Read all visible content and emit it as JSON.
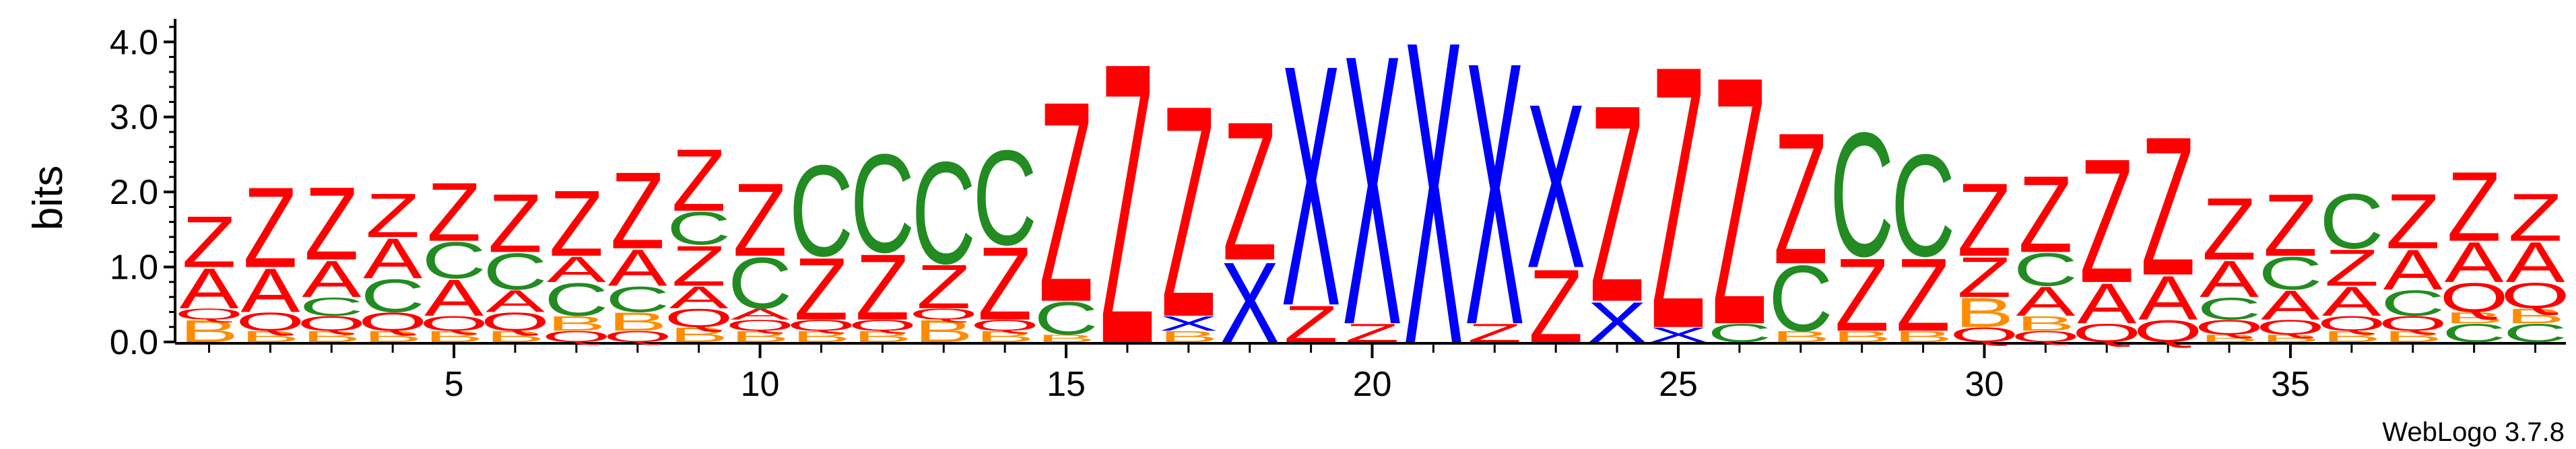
{
  "chart_data": {
    "type": "sequence-logo",
    "title": "",
    "xlabel": "",
    "ylabel": "bits",
    "ylim": [
      0,
      4.2
    ],
    "y_ticks": [
      "0.0",
      "1.0",
      "2.0",
      "3.0",
      "4.0"
    ],
    "x_ticks": [
      "5",
      "10",
      "15",
      "20",
      "25",
      "30",
      "35"
    ],
    "credit": "WebLogo 3.7.8",
    "colors": {
      "Z": "#ff0000",
      "A": "#ff0000",
      "Q": "#ff0000",
      "C": "#228b22",
      "X": "#0000ff",
      "B": "#ff8c00"
    },
    "positions": [
      {
        "pos": 1,
        "stack": [
          [
            "B",
            0.3
          ],
          [
            "Q",
            0.15
          ],
          [
            "A",
            0.55
          ],
          [
            "Z",
            0.7
          ]
        ]
      },
      {
        "pos": 2,
        "stack": [
          [
            "B",
            0.15
          ],
          [
            "Q",
            0.25
          ],
          [
            "A",
            0.6
          ],
          [
            "Z",
            1.1
          ]
        ]
      },
      {
        "pos": 3,
        "stack": [
          [
            "B",
            0.15
          ],
          [
            "Q",
            0.2
          ],
          [
            "C",
            0.25
          ],
          [
            "A",
            0.5
          ],
          [
            "Z",
            1.0
          ]
        ]
      },
      {
        "pos": 4,
        "stack": [
          [
            "B",
            0.15
          ],
          [
            "Q",
            0.25
          ],
          [
            "C",
            0.45
          ],
          [
            "A",
            0.55
          ],
          [
            "Z",
            0.6
          ]
        ]
      },
      {
        "pos": 5,
        "stack": [
          [
            "B",
            0.15
          ],
          [
            "Q",
            0.2
          ],
          [
            "A",
            0.5
          ],
          [
            "C",
            0.5
          ],
          [
            "Z",
            0.8
          ]
        ]
      },
      {
        "pos": 6,
        "stack": [
          [
            "B",
            0.15
          ],
          [
            "Q",
            0.25
          ],
          [
            "A",
            0.3
          ],
          [
            "C",
            0.5
          ],
          [
            "Z",
            0.8
          ]
        ]
      },
      {
        "pos": 7,
        "stack": [
          [
            "Q",
            0.15
          ],
          [
            "B",
            0.2
          ],
          [
            "C",
            0.45
          ],
          [
            "A",
            0.35
          ],
          [
            "Z",
            0.9
          ]
        ]
      },
      {
        "pos": 8,
        "stack": [
          [
            "Q",
            0.15
          ],
          [
            "B",
            0.25
          ],
          [
            "C",
            0.35
          ],
          [
            "A",
            0.5
          ],
          [
            "Z",
            1.05
          ]
        ]
      },
      {
        "pos": 9,
        "stack": [
          [
            "B",
            0.2
          ],
          [
            "Q",
            0.25
          ],
          [
            "A",
            0.3
          ],
          [
            "Z",
            0.55
          ],
          [
            "C",
            0.45
          ],
          [
            "Z",
            0.85
          ]
        ]
      },
      {
        "pos": 10,
        "stack": [
          [
            "B",
            0.15
          ],
          [
            "Q",
            0.15
          ],
          [
            "A",
            0.15
          ],
          [
            "C",
            0.7
          ],
          [
            "Z",
            1.0
          ]
        ]
      },
      {
        "pos": 11,
        "stack": [
          [
            "B",
            0.15
          ],
          [
            "Q",
            0.15
          ],
          [
            "Z",
            0.85
          ],
          [
            "C",
            1.25
          ]
        ]
      },
      {
        "pos": 12,
        "stack": [
          [
            "B",
            0.15
          ],
          [
            "Q",
            0.15
          ],
          [
            "Z",
            0.9
          ],
          [
            "C",
            1.35
          ]
        ]
      },
      {
        "pos": 13,
        "stack": [
          [
            "B",
            0.3
          ],
          [
            "Q",
            0.15
          ],
          [
            "Z",
            0.6
          ],
          [
            "C",
            1.4
          ]
        ]
      },
      {
        "pos": 14,
        "stack": [
          [
            "B",
            0.15
          ],
          [
            "Q",
            0.15
          ],
          [
            "Z",
            1.0
          ],
          [
            "C",
            1.3
          ]
        ]
      },
      {
        "pos": 15,
        "stack": [
          [
            "B",
            0.1
          ],
          [
            "C",
            0.45
          ],
          [
            "Z",
            2.75
          ]
        ]
      },
      {
        "pos": 16,
        "stack": [
          [
            "Z",
            3.85
          ]
        ]
      },
      {
        "pos": 17,
        "stack": [
          [
            "B",
            0.15
          ],
          [
            "X",
            0.2
          ],
          [
            "Z",
            2.9
          ]
        ]
      },
      {
        "pos": 18,
        "stack": [
          [
            "X",
            1.1
          ],
          [
            "Z",
            1.9
          ]
        ]
      },
      {
        "pos": 19,
        "stack": [
          [
            "Z",
            0.5
          ],
          [
            "X",
            3.3
          ]
        ]
      },
      {
        "pos": 20,
        "stack": [
          [
            "Z",
            0.25
          ],
          [
            "X",
            3.7
          ]
        ]
      },
      {
        "pos": 21,
        "stack": [
          [
            "X",
            4.15
          ]
        ]
      },
      {
        "pos": 22,
        "stack": [
          [
            "Z",
            0.25
          ],
          [
            "X",
            3.6
          ]
        ]
      },
      {
        "pos": 23,
        "stack": [
          [
            "Z",
            1.0
          ],
          [
            "X",
            2.25
          ]
        ]
      },
      {
        "pos": 24,
        "stack": [
          [
            "X",
            0.55
          ],
          [
            "Z",
            2.7
          ]
        ]
      },
      {
        "pos": 25,
        "stack": [
          [
            "X",
            0.2
          ],
          [
            "Z",
            3.6
          ]
        ]
      },
      {
        "pos": 26,
        "stack": [
          [
            "C",
            0.25
          ],
          [
            "Z",
            3.4
          ]
        ]
      },
      {
        "pos": 27,
        "stack": [
          [
            "B",
            0.15
          ],
          [
            "C",
            0.9
          ],
          [
            "Z",
            1.8
          ]
        ]
      },
      {
        "pos": 28,
        "stack": [
          [
            "B",
            0.15
          ],
          [
            "Z",
            1.0
          ],
          [
            "C",
            1.7
          ]
        ]
      },
      {
        "pos": 29,
        "stack": [
          [
            "B",
            0.15
          ],
          [
            "Z",
            1.0
          ],
          [
            "C",
            1.4
          ]
        ]
      },
      {
        "pos": 30,
        "stack": [
          [
            "Q",
            0.2
          ],
          [
            "B",
            0.4
          ],
          [
            "Z",
            0.55
          ],
          [
            "Z",
            1.0
          ]
        ]
      },
      {
        "pos": 31,
        "stack": [
          [
            "Q",
            0.15
          ],
          [
            "B",
            0.2
          ],
          [
            "A",
            0.4
          ],
          [
            "C",
            0.45
          ],
          [
            "Z",
            1.05
          ]
        ]
      },
      {
        "pos": 32,
        "stack": [
          [
            "Q",
            0.25
          ],
          [
            "A",
            0.55
          ],
          [
            "Z",
            1.7
          ]
        ]
      },
      {
        "pos": 33,
        "stack": [
          [
            "Q",
            0.3
          ],
          [
            "A",
            0.6
          ],
          [
            "Z",
            1.9
          ]
        ]
      },
      {
        "pos": 34,
        "stack": [
          [
            "B",
            0.1
          ],
          [
            "Q",
            0.2
          ],
          [
            "C",
            0.3
          ],
          [
            "A",
            0.5
          ],
          [
            "Z",
            0.85
          ]
        ]
      },
      {
        "pos": 35,
        "stack": [
          [
            "B",
            0.1
          ],
          [
            "Q",
            0.2
          ],
          [
            "A",
            0.4
          ],
          [
            "C",
            0.45
          ],
          [
            "Z",
            0.85
          ]
        ]
      },
      {
        "pos": 36,
        "stack": [
          [
            "B",
            0.15
          ],
          [
            "Q",
            0.2
          ],
          [
            "A",
            0.4
          ],
          [
            "Z",
            0.5
          ],
          [
            "C",
            0.75
          ]
        ]
      },
      {
        "pos": 37,
        "stack": [
          [
            "B",
            0.15
          ],
          [
            "Q",
            0.2
          ],
          [
            "C",
            0.35
          ],
          [
            "A",
            0.55
          ],
          [
            "Z",
            0.75
          ]
        ]
      },
      {
        "pos": 38,
        "stack": [
          [
            "C",
            0.25
          ],
          [
            "B",
            0.15
          ],
          [
            "Q",
            0.4
          ],
          [
            "A",
            0.55
          ],
          [
            "Z",
            0.95
          ]
        ]
      },
      {
        "pos": 39,
        "stack": [
          [
            "C",
            0.25
          ],
          [
            "B",
            0.2
          ],
          [
            "Q",
            0.35
          ],
          [
            "A",
            0.55
          ],
          [
            "Z",
            0.65
          ]
        ]
      }
    ]
  }
}
